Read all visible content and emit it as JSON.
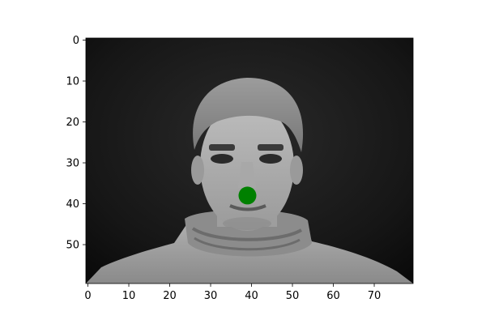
{
  "chart_data": {
    "type": "scatter",
    "title": "",
    "xlabel": "",
    "ylabel": "",
    "image": {
      "description_colormap": "gray",
      "width": 80,
      "height": 60
    },
    "xlim": [
      -0.5,
      79.5
    ],
    "ylim": [
      59.5,
      -0.5
    ],
    "x_ticks": [
      0,
      10,
      20,
      30,
      40,
      50,
      60,
      70
    ],
    "y_ticks": [
      0,
      10,
      20,
      30,
      40,
      50
    ],
    "x_tick_labels": [
      "0",
      "10",
      "20",
      "30",
      "40",
      "50",
      "60",
      "70"
    ],
    "y_tick_labels": [
      "0",
      "10",
      "20",
      "30",
      "40",
      "50"
    ],
    "points": [
      {
        "x": 39,
        "y": 38,
        "color": "#008000"
      }
    ],
    "grid": false
  }
}
